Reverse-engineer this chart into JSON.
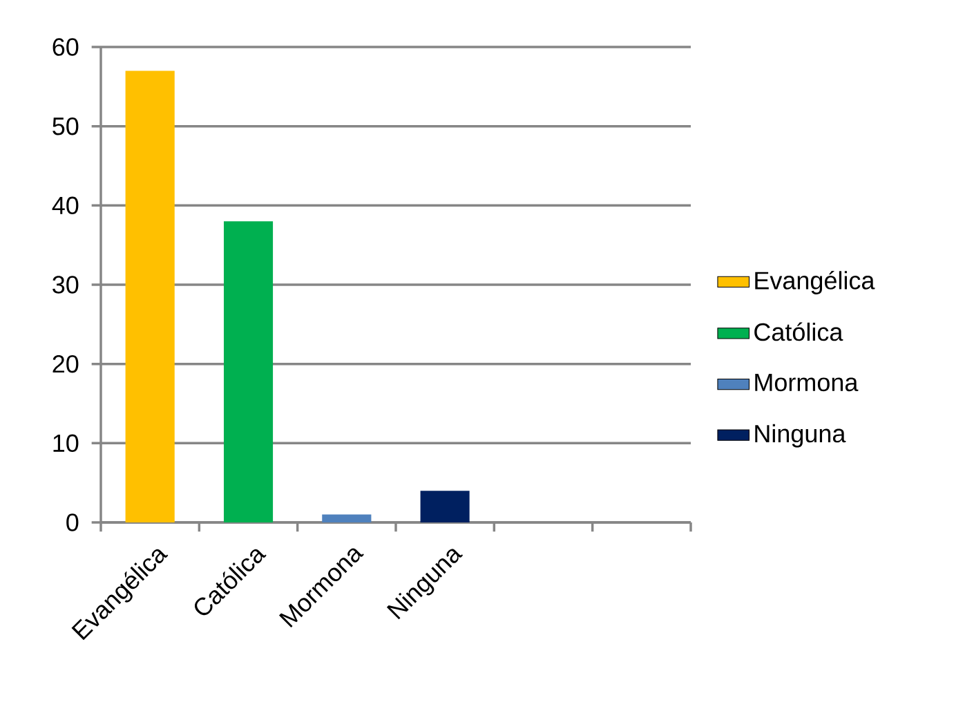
{
  "chart_data": {
    "type": "bar",
    "categories": [
      "Evangélica",
      "Católica",
      "Mormona",
      "Ninguna",
      null,
      null
    ],
    "series": [
      {
        "name": "Evangélica",
        "color": "#ffc000",
        "values": [
          57,
          null,
          null,
          null,
          null,
          null
        ]
      },
      {
        "name": "Católica",
        "color": "#00b050",
        "values": [
          null,
          38,
          null,
          null,
          null,
          null
        ]
      },
      {
        "name": "Mormona",
        "color": "#4f81bd",
        "values": [
          null,
          null,
          1,
          null,
          null,
          null
        ]
      },
      {
        "name": "Ninguna",
        "color": "#002060",
        "values": [
          null,
          null,
          null,
          4,
          null,
          null
        ]
      }
    ],
    "ylim": [
      0,
      60
    ],
    "yticks": [
      0,
      10,
      20,
      30,
      40,
      50,
      60
    ],
    "grid": "y",
    "legend": "right"
  }
}
